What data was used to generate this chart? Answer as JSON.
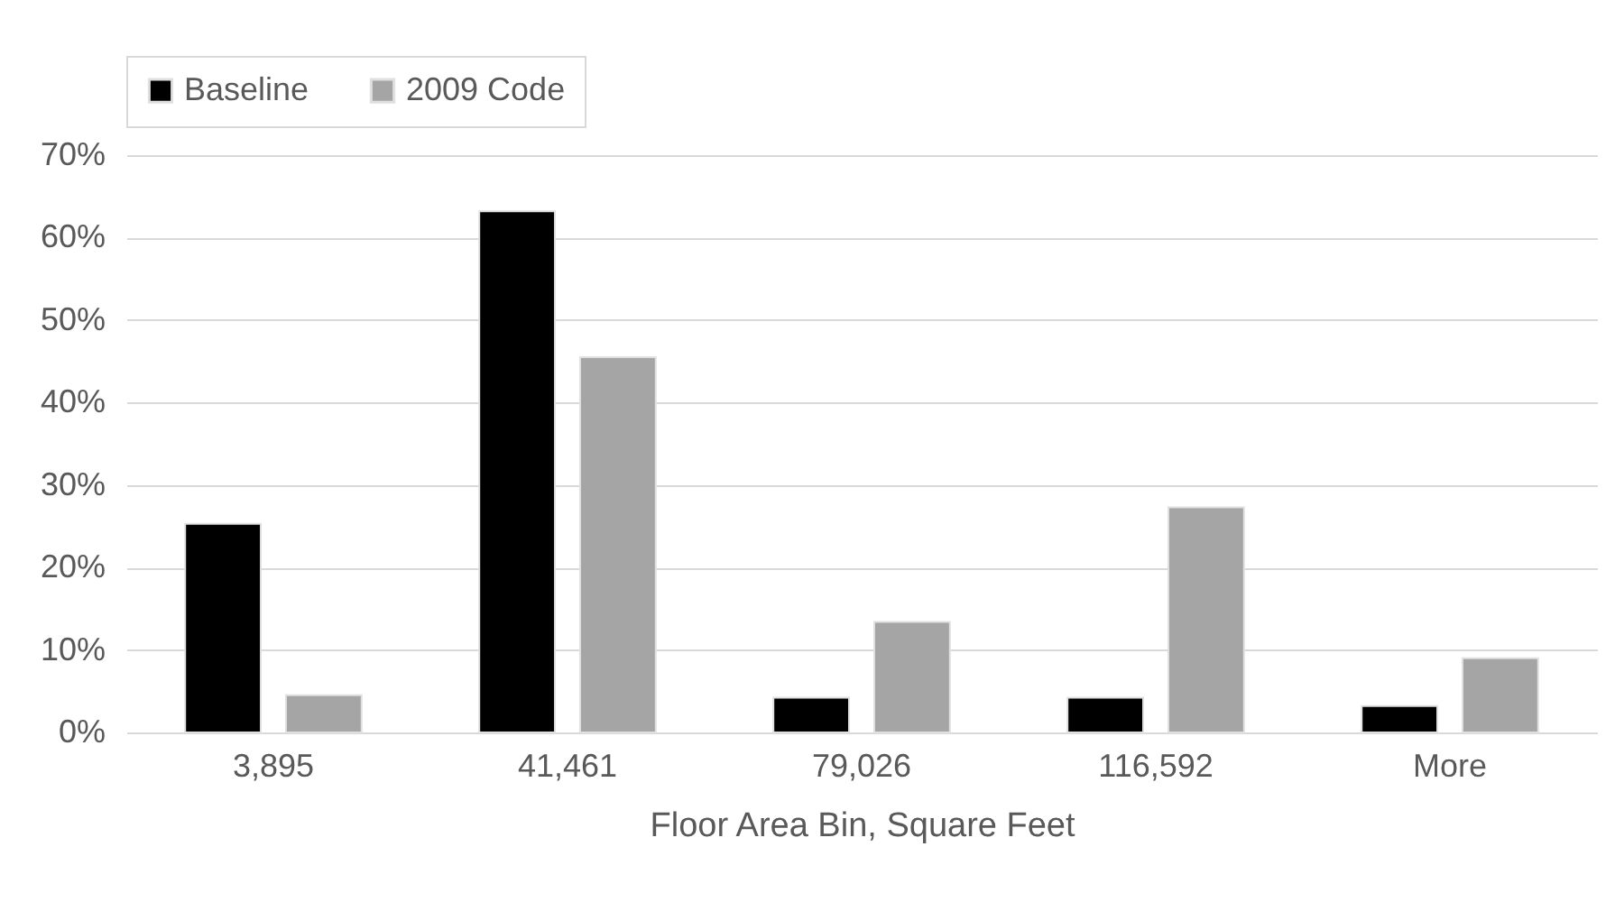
{
  "chart_data": {
    "type": "bar",
    "xlabel": "Floor Area Bin, Square Feet",
    "categories": [
      "3,895",
      "41,461",
      "79,026",
      "116,592",
      "More"
    ],
    "series": [
      {
        "name": "Baseline",
        "color": "#000000",
        "values": [
          25.3,
          63.2,
          4.2,
          4.2,
          3.2
        ]
      },
      {
        "name": "2009 Code",
        "color": "#a5a5a5",
        "values": [
          4.5,
          45.5,
          13.4,
          27.3,
          9.0
        ]
      }
    ],
    "ylim": [
      0,
      70
    ],
    "yticks": [
      {
        "value": 0,
        "label": "0%"
      },
      {
        "value": 10,
        "label": "10%"
      },
      {
        "value": 20,
        "label": "20%"
      },
      {
        "value": 30,
        "label": "30%"
      },
      {
        "value": 40,
        "label": "40%"
      },
      {
        "value": 50,
        "label": "50%"
      },
      {
        "value": 60,
        "label": "60%"
      },
      {
        "value": 70,
        "label": "70%"
      }
    ],
    "grid": "y",
    "legend": "top"
  }
}
